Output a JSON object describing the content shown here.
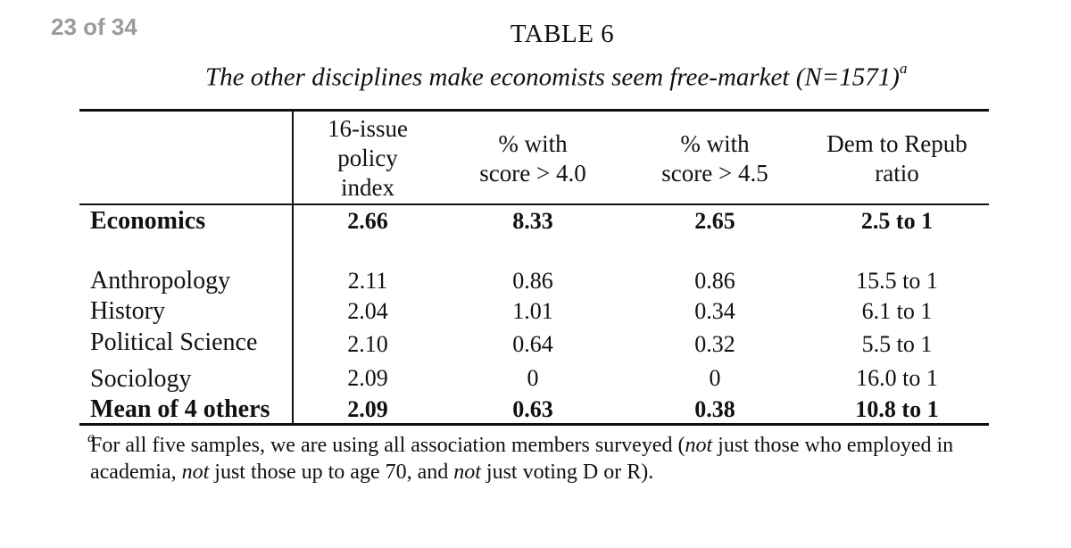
{
  "page_indicator": "23 of 34",
  "table": {
    "label": "TABLE 6",
    "caption": "The other disciplines make economists seem free-market (N=1571)",
    "caption_mark": "a",
    "headers": [
      "16-issue\npolicy\nindex",
      "% with\nscore > 4.0",
      "% with\nscore > 4.5",
      "Dem to Repub\nratio"
    ],
    "rows": [
      {
        "label": "Economics",
        "values": [
          "2.66",
          "8.33",
          "2.65",
          "2.5 to 1"
        ]
      },
      {
        "label": "Anthropology",
        "values": [
          "2.11",
          "0.86",
          "0.86",
          "15.5 to 1"
        ]
      },
      {
        "label": "History",
        "values": [
          "2.04",
          "1.01",
          "0.34",
          "6.1 to 1"
        ]
      },
      {
        "label": "Political Science",
        "values": [
          "2.10",
          "0.64",
          "0.32",
          "5.5 to 1"
        ]
      },
      {
        "label": "Sociology",
        "values": [
          "2.09",
          "0",
          "0",
          "16.0 to 1"
        ]
      },
      {
        "label": "Mean of 4 others",
        "values": [
          "2.09",
          "0.63",
          "0.38",
          "10.8 to 1"
        ]
      }
    ]
  },
  "footnote": {
    "mark": "a",
    "t1": "For all five samples, we are using all association members surveyed (",
    "e1": "not",
    "t2": " just those who employed in academia, ",
    "e2": "not",
    "t3": " just those up to age 70, and ",
    "e3": "not",
    "t4": " just voting D or R)."
  }
}
